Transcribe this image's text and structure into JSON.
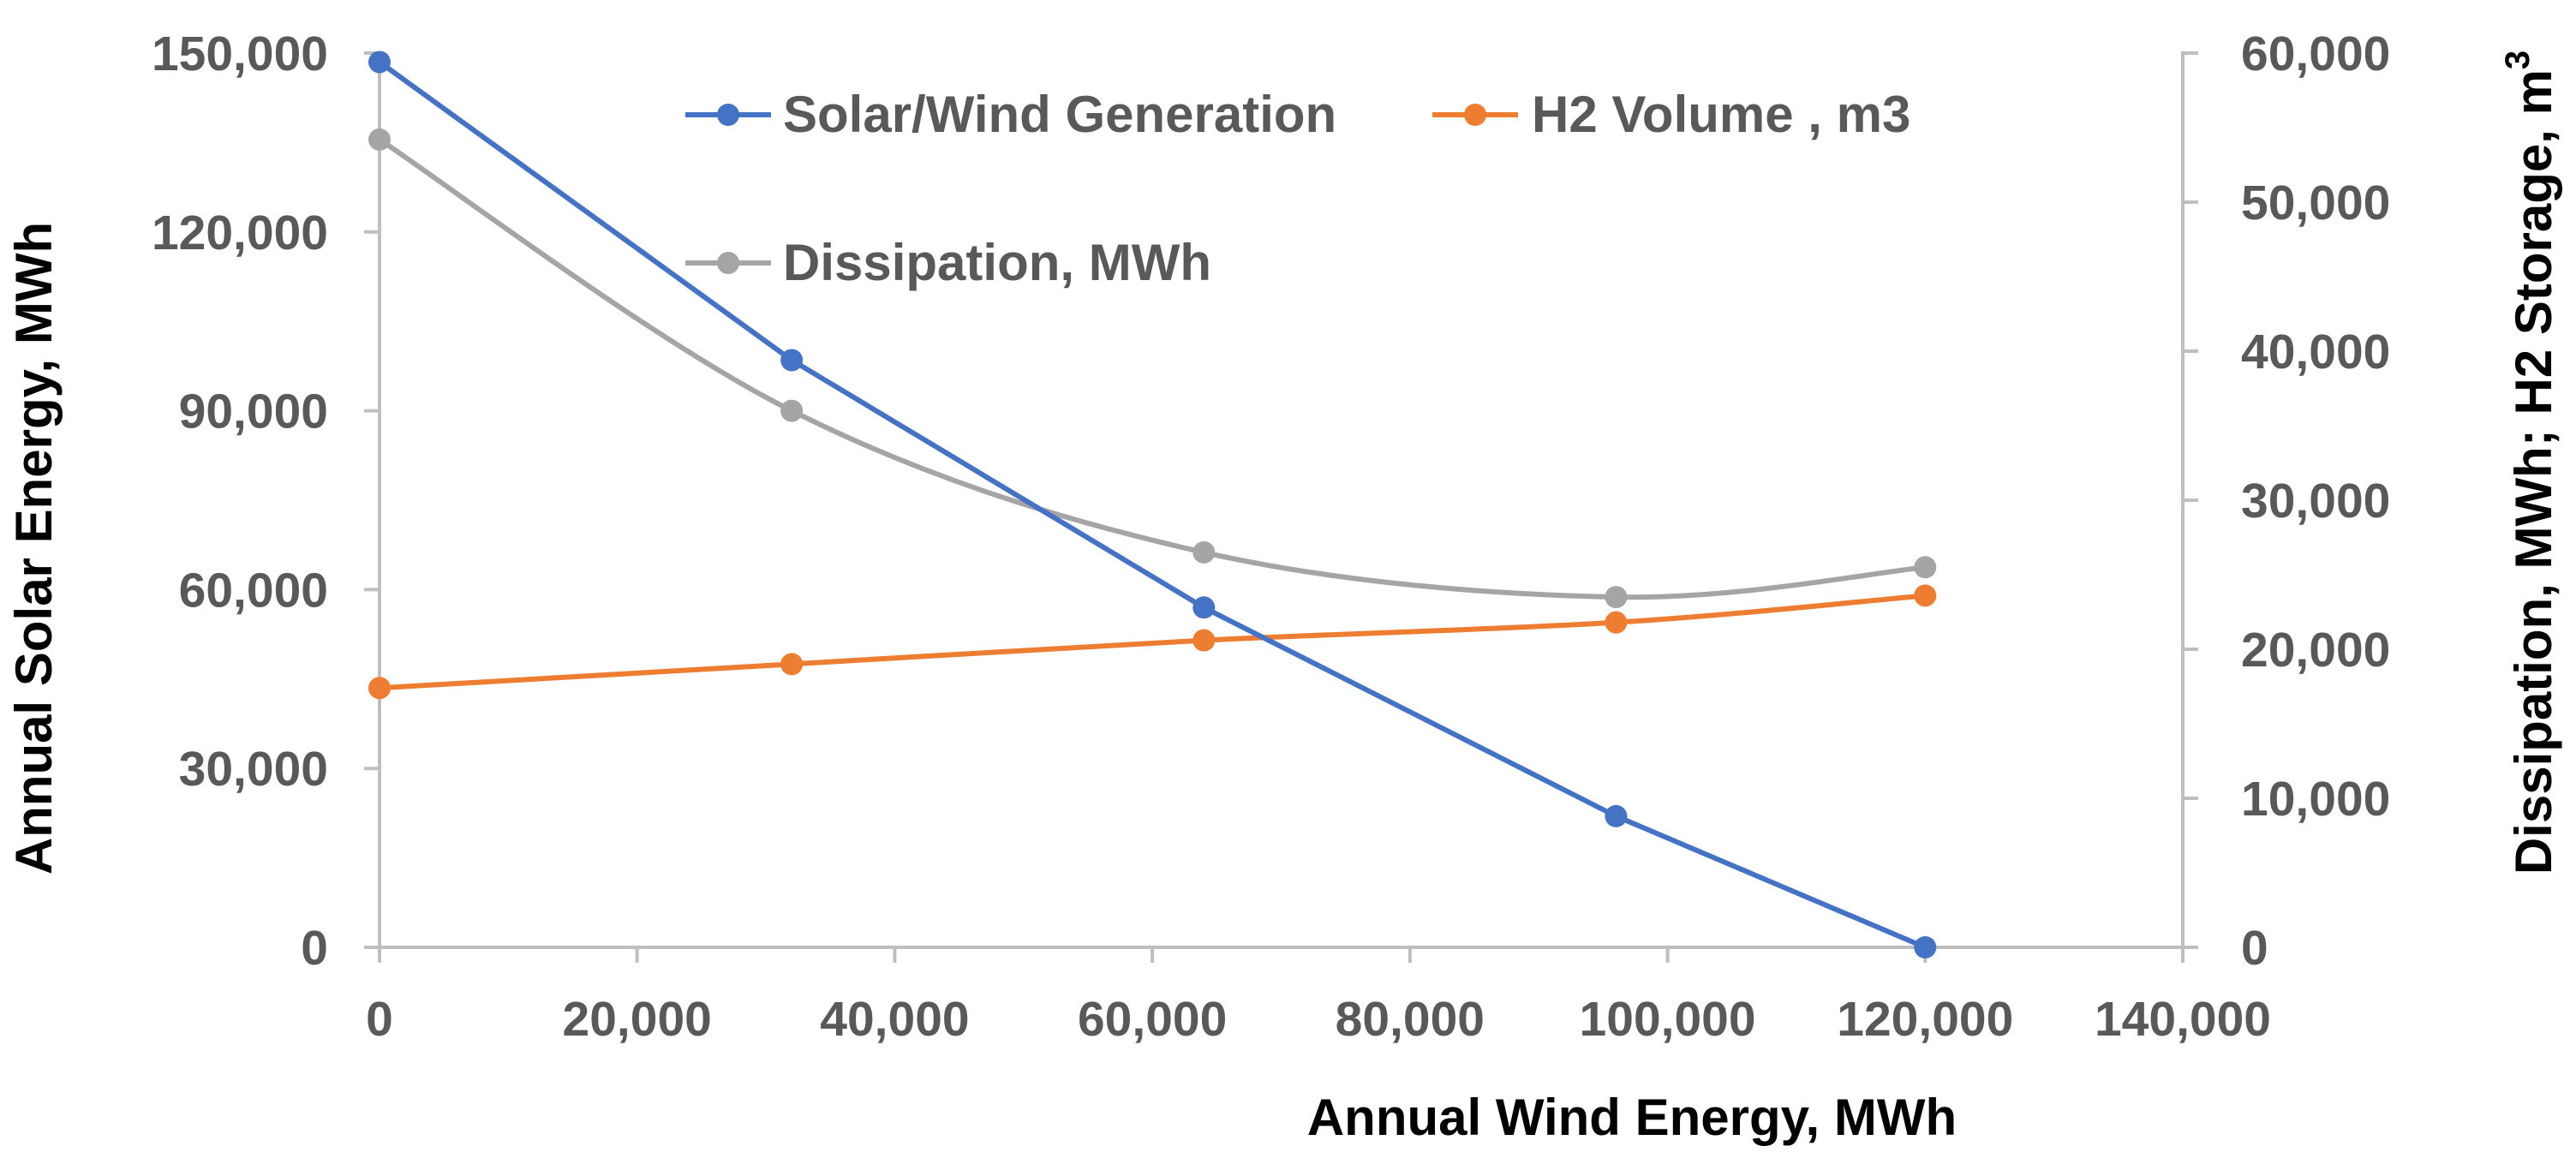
{
  "chart_data": {
    "type": "line",
    "title": "",
    "xlabel": "Annual Wind Energy, MWh",
    "ylabel": "Annual Solar Energy, MWh",
    "y2label_main": "Dissipation, MWh; H2 Storage, m",
    "y2label_sup": "3",
    "xlim": [
      0,
      140000
    ],
    "ylim": [
      0,
      150000
    ],
    "y2lim": [
      0,
      60000
    ],
    "x_ticks": [
      "0",
      "20,000",
      "40,000",
      "60,000",
      "80,000",
      "100,000",
      "120,000",
      "140,000"
    ],
    "y_ticks": [
      "0",
      "30,000",
      "60,000",
      "90,000",
      "120,000",
      "150,000"
    ],
    "y2_ticks": [
      "0",
      "10,000",
      "20,000",
      "30,000",
      "40,000",
      "50,000",
      "60,000"
    ],
    "legend_position": "top",
    "series": [
      {
        "name": "Solar/Wind Generation",
        "axis": "left",
        "color": "#4472C4",
        "smooth": false,
        "x": [
          0,
          32000,
          64000,
          96000,
          120000
        ],
        "values": [
          148500,
          98500,
          57000,
          22000,
          0
        ]
      },
      {
        "name": "H2 Volume , m3",
        "axis": "right",
        "color": "#ED7D31",
        "smooth": true,
        "x": [
          0,
          32000,
          64000,
          96000,
          120000
        ],
        "values": [
          17400,
          19000,
          20600,
          21800,
          23600
        ]
      },
      {
        "name": "Dissipation, MWh",
        "axis": "right",
        "color": "#A5A5A5",
        "smooth": true,
        "x": [
          0,
          32000,
          64000,
          96000,
          120000
        ],
        "values": [
          54200,
          36000,
          26500,
          23500,
          25500
        ]
      }
    ]
  }
}
